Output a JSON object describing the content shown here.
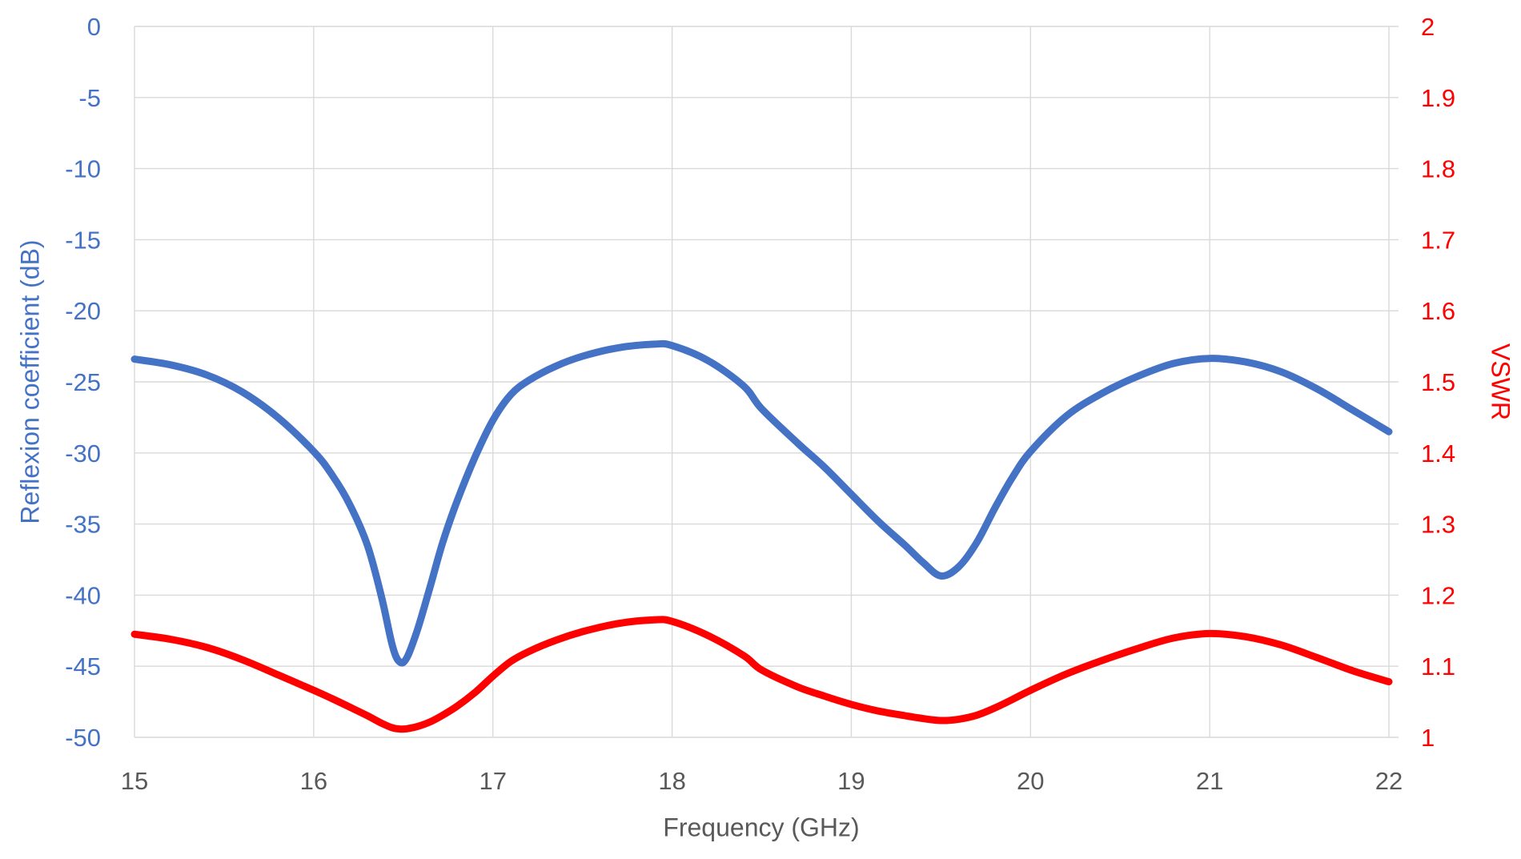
{
  "chart": {
    "background": "#FFFFFF",
    "grid_color": "#D9D9D9",
    "x_axis": {
      "title": "Frequency (GHz)",
      "tick_labels": [
        "15",
        "16",
        "17",
        "18",
        "19",
        "20",
        "21",
        "22"
      ],
      "color": "#595959"
    },
    "y_axis_left": {
      "title": "Reflexion coefficient (dB)",
      "tick_labels": [
        "0",
        "-5",
        "-10",
        "-15",
        "-20",
        "-25",
        "-30",
        "-35",
        "-40",
        "-45",
        "-50"
      ],
      "color": "#4472C4"
    },
    "y_axis_right": {
      "title": "VSWR",
      "tick_labels": [
        "2",
        "1.9",
        "1.8",
        "1.7",
        "1.6",
        "1.5",
        "1.4",
        "1.3",
        "1.2",
        "1.1",
        "1"
      ],
      "color": "#FF0000"
    }
  },
  "chart_data": {
    "type": "line",
    "title": "",
    "xlabel": "Frequency (GHz)",
    "ylabel_left": "Reflexion coefficient (dB)",
    "ylabel_right": "VSWR",
    "xlim": [
      15,
      22
    ],
    "ylim_left": [
      -50,
      0
    ],
    "ylim_right": [
      1,
      2
    ],
    "grid": true,
    "legend_position": "none",
    "x": [
      15.0,
      15.2,
      15.4,
      15.6,
      15.8,
      16.0,
      16.1,
      16.2,
      16.3,
      16.38,
      16.44,
      16.48,
      16.52,
      16.58,
      16.65,
      16.72,
      16.8,
      16.9,
      17.0,
      17.1,
      17.2,
      17.35,
      17.5,
      17.7,
      17.9,
      18.0,
      18.2,
      18.4,
      18.5,
      18.7,
      18.85,
      19.0,
      19.15,
      19.3,
      19.4,
      19.5,
      19.6,
      19.7,
      19.8,
      19.9,
      20.0,
      20.2,
      20.4,
      20.6,
      20.8,
      21.0,
      21.2,
      21.4,
      21.6,
      21.8,
      22.0
    ],
    "series": [
      {
        "name": "Reflexion coefficient (dB)",
        "axis": "left",
        "color": "#4472C4",
        "stroke_width": 9,
        "values": [
          -23.4,
          -23.8,
          -24.5,
          -25.7,
          -27.5,
          -29.9,
          -31.5,
          -33.6,
          -36.5,
          -40.2,
          -43.6,
          -44.7,
          -44.4,
          -42.4,
          -39.4,
          -36.3,
          -33.4,
          -30.3,
          -27.7,
          -25.9,
          -24.9,
          -23.9,
          -23.2,
          -22.6,
          -22.35,
          -22.45,
          -23.5,
          -25.3,
          -26.9,
          -29.3,
          -31.0,
          -32.9,
          -34.8,
          -36.5,
          -37.7,
          -38.65,
          -38.0,
          -36.3,
          -33.9,
          -31.7,
          -29.9,
          -27.4,
          -25.8,
          -24.6,
          -23.7,
          -23.35,
          -23.6,
          -24.3,
          -25.5,
          -27.0,
          -28.5
        ]
      },
      {
        "name": "VSWR",
        "axis": "right",
        "color": "#FF0000",
        "stroke_width": 9,
        "values": [
          1.145,
          1.138,
          1.1267,
          1.1094,
          1.088,
          1.0661,
          1.0547,
          1.0427,
          1.0304,
          1.0197,
          1.0133,
          1.0117,
          1.0121,
          1.0153,
          1.0217,
          1.0311,
          1.0437,
          1.063,
          1.086,
          1.1068,
          1.1206,
          1.1364,
          1.1486,
          1.1601,
          1.1652,
          1.1631,
          1.1432,
          1.1149,
          1.0947,
          1.071,
          1.058,
          1.0463,
          1.0371,
          1.0304,
          1.0264,
          1.0236,
          1.0255,
          1.0311,
          1.0412,
          1.0534,
          1.0661,
          1.0891,
          1.1081,
          1.1251,
          1.1397,
          1.1459,
          1.1415,
          1.1298,
          1.1121,
          1.0935,
          1.0781
        ]
      }
    ]
  }
}
